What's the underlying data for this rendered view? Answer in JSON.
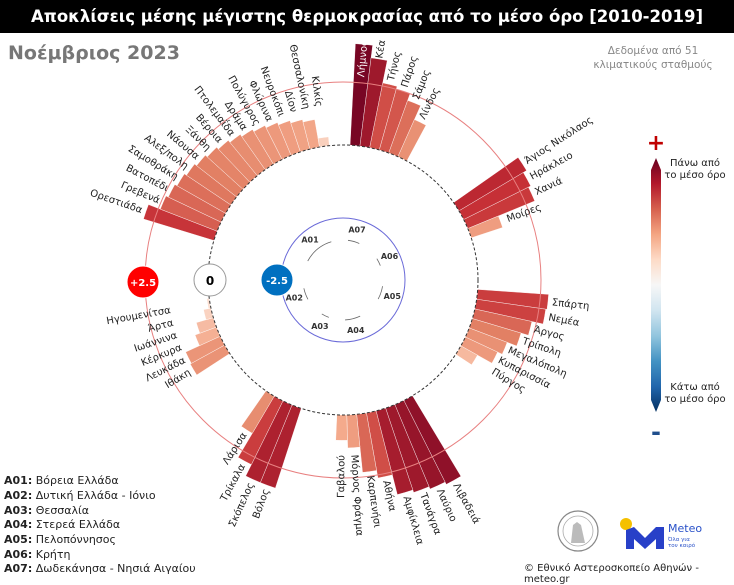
{
  "title": "Αποκλίσεις μέσης μέγιστης θερμοκρασίας από το μέσο όρο [2010-2019]",
  "month": "Νοέμβριος 2023",
  "source_note": "Δεδομένα από 51 κλιματικούς σταθμούς",
  "colorbar": {
    "plus": "+",
    "minus": "-",
    "top_label": "Πάνω από το μέσο όρο",
    "bottom_label": "Κάτω από το μέσο όρο",
    "colors": [
      "#67001f",
      "#b2182b",
      "#d6604d",
      "#f4a582",
      "#fddbc7",
      "#f7f7f7",
      "#d1e5f0",
      "#92c5de",
      "#4393c3",
      "#2166ac",
      "#053061"
    ]
  },
  "legend": [
    {
      "code": "A01:",
      "name": "Βόρεια Ελλάδα"
    },
    {
      "code": "A02:",
      "name": "Δυτική Ελλάδα - Ιόνιο"
    },
    {
      "code": "A03:",
      "name": "Θεσσαλία"
    },
    {
      "code": "A04:",
      "name": "Στερεά Ελλάδα"
    },
    {
      "code": "A05:",
      "name": "Πελοπόννησος"
    },
    {
      "code": "A06:",
      "name": "Κρήτη"
    },
    {
      "code": "A07:",
      "name": "Δωδεκάνησα - Νησιά Αιγαίου"
    }
  ],
  "footer": {
    "copyright": "© Εθνικό Αστεροσκοπείο Αθηνών - meteo.gr",
    "meteo_name": "Meteo",
    "meteo_tagline": "Όλα για τον καιρό"
  },
  "chart_data": {
    "type": "radial-bar",
    "unit": "°C",
    "reference_circles": [
      {
        "value": 2.5,
        "label": "+2.5",
        "color": "#ff0000"
      },
      {
        "value": 0,
        "label": "0",
        "color": "#000000"
      },
      {
        "value": -2.5,
        "label": "-2.5",
        "color": "#0070c0"
      }
    ],
    "groups": [
      {
        "code": "A07",
        "stations": [
          {
            "name": "Λήμνος",
            "value": 4.0
          },
          {
            "name": "Κέα",
            "value": 3.5
          },
          {
            "name": "Τήνος",
            "value": 2.6
          },
          {
            "name": "Πάρος",
            "value": 2.5
          },
          {
            "name": "Σάμος",
            "value": 2.2
          },
          {
            "name": "Λίνδος",
            "value": 1.6
          }
        ]
      },
      {
        "code": "A06",
        "stations": [
          {
            "name": "Άγιος Νικόλαος",
            "value": 3.1
          },
          {
            "name": "Ηράκλειο",
            "value": 2.95
          },
          {
            "name": "Χανιά",
            "value": 2.85
          },
          {
            "name": "Μοίρες",
            "value": 1.3
          }
        ]
      },
      {
        "code": "A05",
        "stations": [
          {
            "name": "Σπάρτη",
            "value": 2.8
          },
          {
            "name": "Νεμέα",
            "value": 2.75
          },
          {
            "name": "Άργος",
            "value": 2.3
          },
          {
            "name": "Τρίπολη",
            "value": 2.0
          },
          {
            "name": "Μεγαλόπολη",
            "value": 1.6
          },
          {
            "name": "Κυπαρισσία",
            "value": 1.4
          },
          {
            "name": "Πύργος",
            "value": 0.75
          }
        ]
      },
      {
        "code": "A04",
        "stations": [
          {
            "name": "Λιβαδειά",
            "value": 3.7
          },
          {
            "name": "Λαύριο",
            "value": 3.6
          },
          {
            "name": "Τανάγρα",
            "value": 3.5
          },
          {
            "name": "Αμφίκλεια",
            "value": 3.4
          },
          {
            "name": "Αθήνα",
            "value": 2.6
          },
          {
            "name": "Καρπενήσι",
            "value": 2.3
          },
          {
            "name": "Μόρνος Φράγμα",
            "value": 1.3
          },
          {
            "name": "Γαβαλού",
            "value": 1.0
          }
        ]
      },
      {
        "code": "A03",
        "stations": [
          {
            "name": "Βόλος",
            "value": 3.3
          },
          {
            "name": "Σκόπελος",
            "value": 3.3
          },
          {
            "name": "Τρίκαλα",
            "value": 2.8
          },
          {
            "name": "Λάρισα",
            "value": 1.7
          }
        ]
      },
      {
        "code": "A02",
        "stations": [
          {
            "name": "Ιθάκη",
            "value": 1.55
          },
          {
            "name": "Λευκάδα",
            "value": 1.5
          },
          {
            "name": "Κέρκυρα",
            "value": 0.9
          },
          {
            "name": "Ιωάννινα",
            "value": 0.7
          },
          {
            "name": "Άρτα",
            "value": 0.3
          },
          {
            "name": "Ηγουμενίτσα",
            "value": 0.1
          }
        ]
      },
      {
        "code": "A01",
        "stations": [
          {
            "name": "Ορεστιάδα",
            "value": 2.9
          },
          {
            "name": "Γρεβενά",
            "value": 2.4
          },
          {
            "name": "Βατοπέδι",
            "value": 2.3
          },
          {
            "name": "Σαμοθράκη",
            "value": 2.2
          },
          {
            "name": "Αλεξ/πολη",
            "value": 2.1
          },
          {
            "name": "Νάουσα",
            "value": 2.0
          },
          {
            "name": "Ξάνθη",
            "value": 1.9
          },
          {
            "name": "Βέροια",
            "value": 1.8
          },
          {
            "name": "Πτολεμαΐδα",
            "value": 1.7
          },
          {
            "name": "Δράμα",
            "value": 1.6
          },
          {
            "name": "Πολύγυρος",
            "value": 1.5
          },
          {
            "name": "Φλώρινα",
            "value": 1.4
          },
          {
            "name": "Νευροκόπι",
            "value": 1.3
          },
          {
            "name": "Δίον",
            "value": 1.2
          },
          {
            "name": "Θεσσαλονίκη",
            "value": 1.1
          },
          {
            "name": "Κιλκίς",
            "value": 0.35
          }
        ]
      }
    ]
  }
}
